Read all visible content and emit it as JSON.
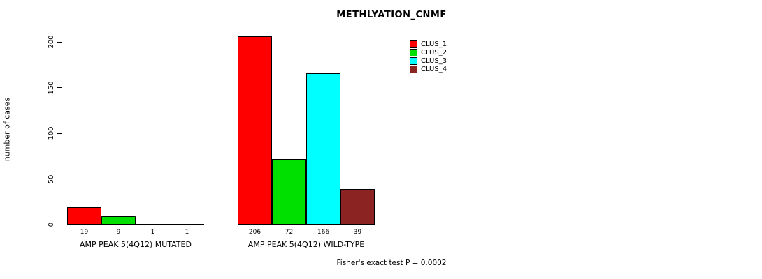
{
  "chart_data": {
    "type": "bar",
    "title": "METHLYATION_CNMF",
    "ylabel": "number of cases",
    "xlabel": "",
    "ylim": [
      0,
      200
    ],
    "yticks": [
      0,
      50,
      100,
      150,
      200
    ],
    "grid": false,
    "legend_position": "top-right",
    "categories": [
      "AMP PEAK 5(4Q12) MUTATED",
      "AMP PEAK 5(4Q12) WILD-TYPE"
    ],
    "series": [
      {
        "name": "CLUS_1",
        "color": "#ff0000",
        "values": [
          19,
          206
        ]
      },
      {
        "name": "CLUS_2",
        "color": "#00e000",
        "values": [
          9,
          72
        ]
      },
      {
        "name": "CLUS_3",
        "color": "#00ffff",
        "values": [
          1,
          166
        ]
      },
      {
        "name": "CLUS_4",
        "color": "#8b2323",
        "values": [
          1,
          39
        ]
      }
    ],
    "bar_labels": [
      [
        "19",
        "9",
        "1",
        "1"
      ],
      [
        "206",
        "72",
        "166",
        "39"
      ]
    ],
    "annotation": "Fisher's exact test P = 0.0002"
  }
}
